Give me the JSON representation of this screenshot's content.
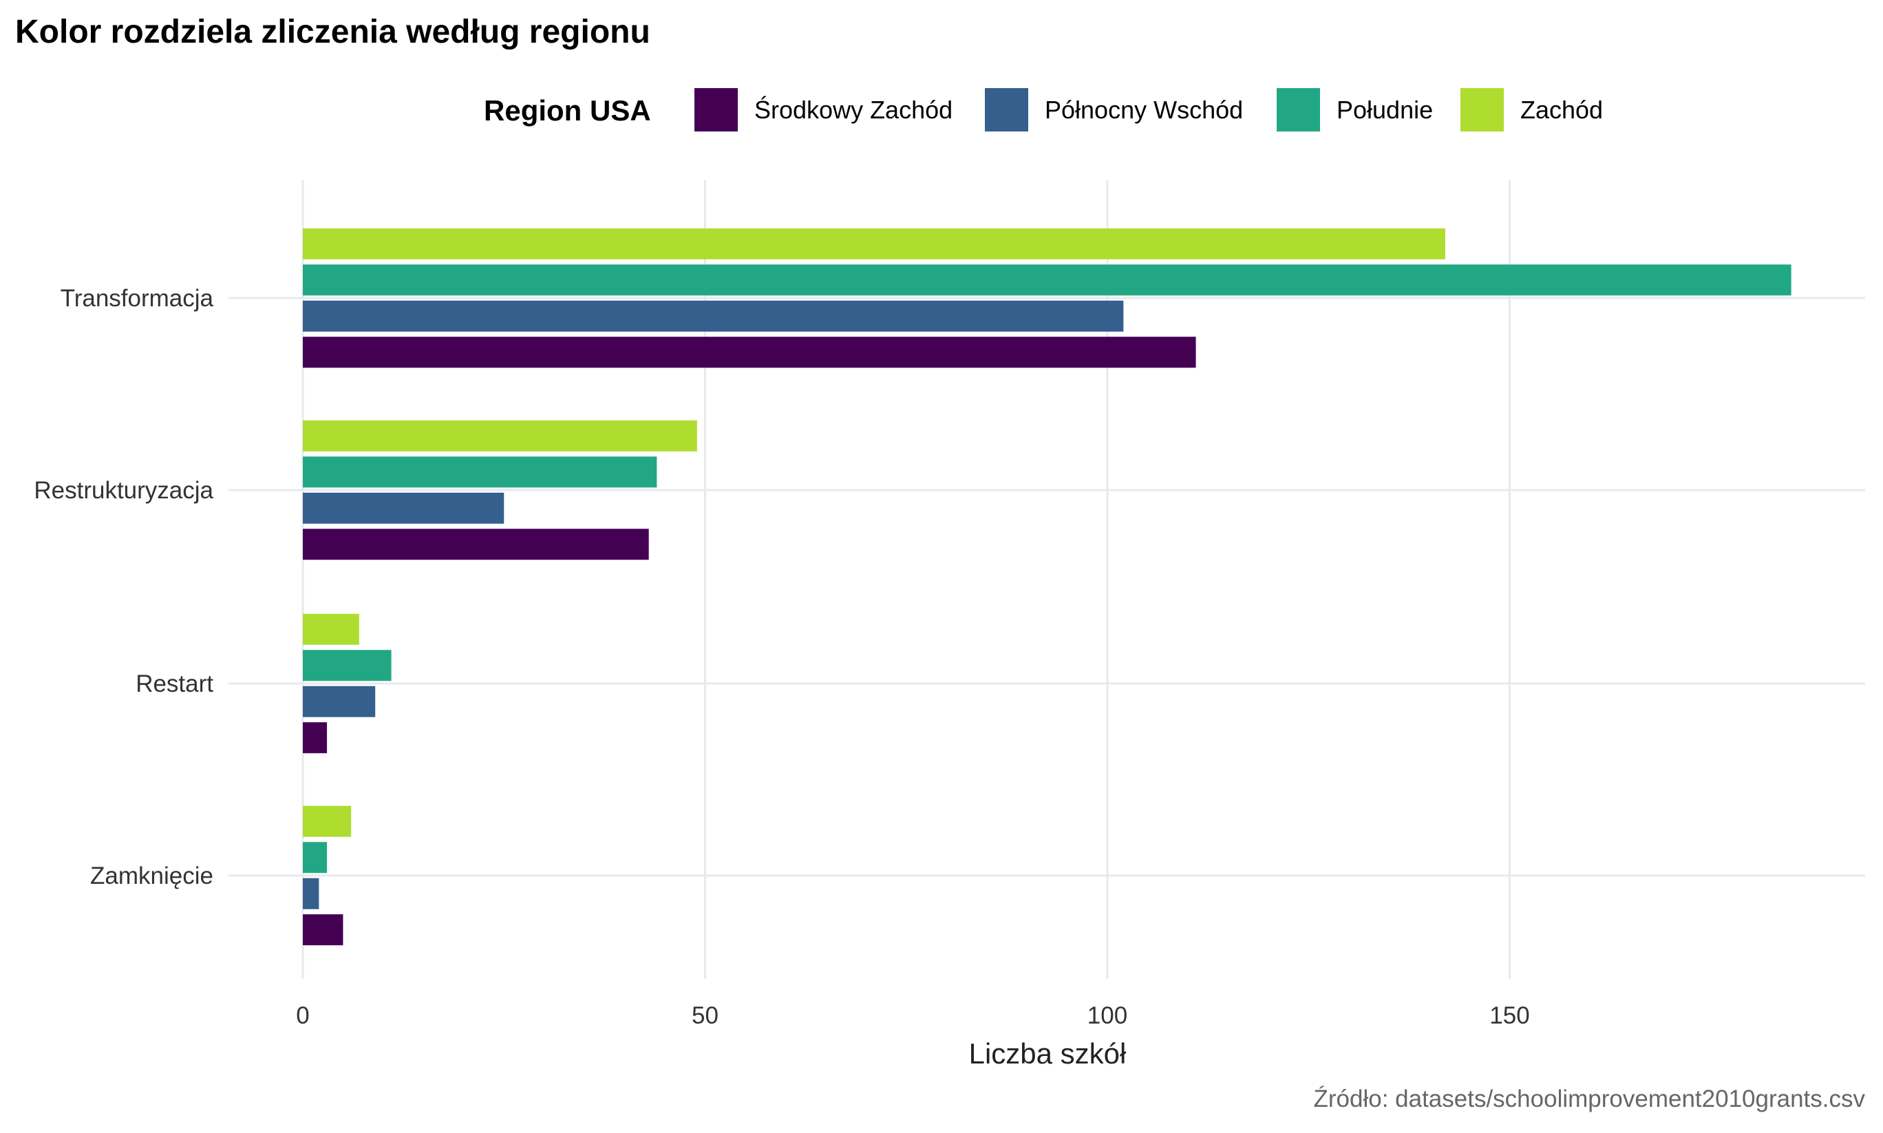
{
  "chart_data": {
    "type": "bar",
    "orientation": "horizontal",
    "title": "Kolor rozdziela zliczenia według regionu",
    "xlabel": "Liczba szkół",
    "ylabel": "",
    "caption": "Źródło: datasets/schoolimprovement2010grants.csv",
    "categories": [
      "Transformacja",
      "Restrukturyzacja",
      "Restart",
      "Zamknięcie"
    ],
    "legend": {
      "title": "Region USA",
      "position": "top"
    },
    "series": [
      {
        "name": "Środkowy Zachód",
        "color": "#440154",
        "values": [
          111,
          43,
          3,
          5
        ]
      },
      {
        "name": "Północny Wschód",
        "color": "#355F8D",
        "values": [
          102,
          25,
          9,
          2
        ]
      },
      {
        "name": "Południe",
        "color": "#22A784",
        "values": [
          185,
          44,
          11,
          3
        ]
      },
      {
        "name": "Zachód",
        "color": "#AEDD2F",
        "values": [
          142,
          49,
          7,
          6
        ]
      }
    ],
    "xticks": [
      0,
      50,
      100,
      150
    ],
    "xlim": [
      0,
      185
    ],
    "grid": true
  }
}
